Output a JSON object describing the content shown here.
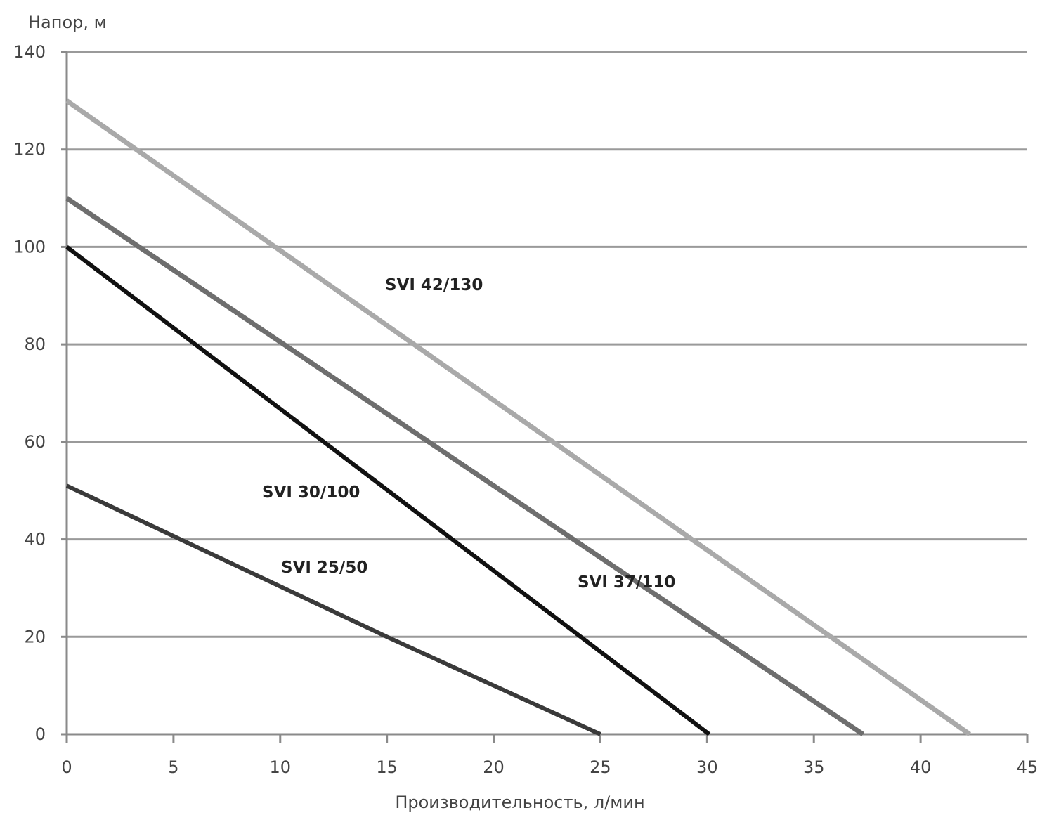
{
  "chart_data": {
    "type": "line",
    "ylabel": "Напор, м",
    "xlabel": "Производительность, л/мин",
    "xlim": [
      0,
      45
    ],
    "ylim": [
      0,
      140
    ],
    "x_ticks": [
      0,
      5,
      10,
      15,
      20,
      25,
      30,
      35,
      40,
      45
    ],
    "y_ticks": [
      0,
      20,
      40,
      60,
      80,
      100,
      120,
      140
    ],
    "grid": "horizontal",
    "legend": "inline labels",
    "series": [
      {
        "name": "SVI 42/130",
        "color": "#a9a9a9",
        "x": [
          0,
          42.3
        ],
        "y": [
          130,
          0
        ]
      },
      {
        "name": "SVI 37/110",
        "color": "#6e6e6e",
        "x": [
          0,
          37.3
        ],
        "y": [
          110,
          0
        ]
      },
      {
        "name": "SVI 30/100",
        "color": "#111111",
        "x": [
          0,
          30.1
        ],
        "y": [
          100,
          0
        ]
      },
      {
        "name": "SVI 25/50",
        "color": "#3a3a3a",
        "x": [
          0,
          15,
          25
        ],
        "y": [
          51,
          20,
          0
        ]
      }
    ]
  }
}
